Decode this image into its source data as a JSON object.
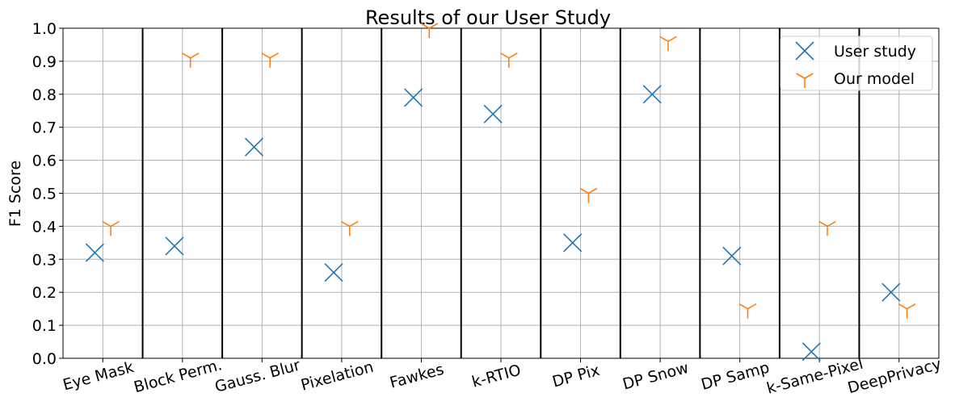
{
  "chart_data": {
    "type": "scatter",
    "title": "Results of our User Study",
    "xlabel": "",
    "ylabel": "F1 Score",
    "ylim": [
      0.0,
      1.0
    ],
    "yticks": [
      "0.0",
      "0.1",
      "0.2",
      "0.3",
      "0.4",
      "0.5",
      "0.6",
      "0.7",
      "0.8",
      "0.9",
      "1.0"
    ],
    "categories": [
      "Eye Mask",
      "Block Perm.",
      "Gauss. Blur",
      "Pixelation",
      "Fawkes",
      "k-RTIO",
      "DP Pix",
      "DP Snow",
      "DP Samp",
      "k-Same-Pixel",
      "DeepPrivacy"
    ],
    "series": [
      {
        "name": "User study",
        "marker": "x",
        "color": "#1f77b4",
        "values": [
          0.32,
          0.34,
          0.64,
          0.26,
          0.79,
          0.74,
          0.35,
          0.8,
          0.31,
          0.02,
          0.2
        ]
      },
      {
        "name": "Our model",
        "marker": "tri_down",
        "color": "#ff7f0e",
        "values": [
          0.4,
          0.91,
          0.91,
          0.4,
          1.0,
          0.91,
          0.5,
          0.96,
          0.15,
          0.4,
          0.15
        ]
      }
    ],
    "grid": true,
    "legend_position": "top-right"
  }
}
